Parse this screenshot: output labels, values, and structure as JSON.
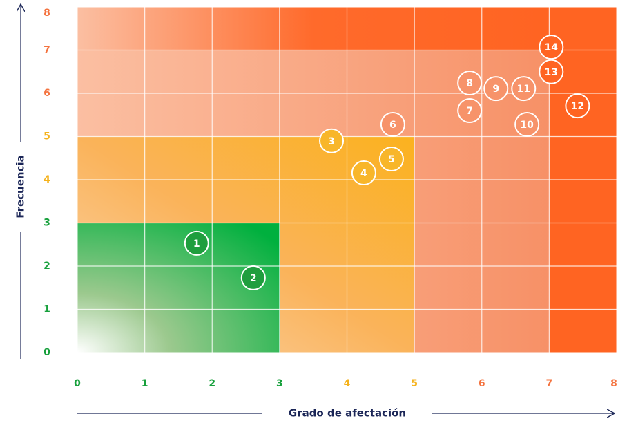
{
  "chart_data": {
    "type": "scatter",
    "xlabel": "Grado de afectación",
    "ylabel": "Frecuencia",
    "xlim": [
      0,
      8
    ],
    "ylim": [
      0,
      8
    ],
    "xticks": [
      0,
      1,
      2,
      3,
      4,
      5,
      6,
      7,
      8
    ],
    "yticks": [
      0,
      1,
      2,
      3,
      4,
      5,
      6,
      7,
      8
    ],
    "xtick_colors": [
      "#17a03c",
      "#17a03c",
      "#17a03c",
      "#17a03c",
      "#f5b21b",
      "#f5b21b",
      "#f4733f",
      "#f4733f",
      "#f4733f"
    ],
    "ytick_colors": [
      "#17a03c",
      "#17a03c",
      "#17a03c",
      "#17a03c",
      "#f5b21b",
      "#f5b21b",
      "#f4733f",
      "#f4733f",
      "#f4733f"
    ],
    "grid": true,
    "series": [
      {
        "labels": [
          "1",
          "2",
          "3",
          "4",
          "5",
          "6",
          "7",
          "8",
          "9",
          "10",
          "11",
          "12",
          "13",
          "14"
        ],
        "x": [
          1.77,
          2.61,
          3.77,
          4.25,
          4.66,
          4.68,
          5.82,
          5.82,
          6.21,
          6.67,
          6.62,
          7.42,
          7.03,
          7.03
        ],
        "values": [
          2.53,
          1.73,
          4.9,
          4.16,
          4.48,
          5.28,
          5.6,
          6.24,
          6.11,
          5.28,
          6.11,
          5.71,
          6.5,
          7.07
        ],
        "colors": [
          "#1f9e3e",
          "#1f9e3e",
          "#f8b62a",
          "#f8b62a",
          "#f8b62a",
          "#f7936a",
          "#f7936a",
          "#f7936a",
          "#f7936a",
          "#f7936a",
          "#f7936a",
          "#ff6422",
          "#ff6422",
          "#ff6422"
        ]
      }
    ]
  }
}
